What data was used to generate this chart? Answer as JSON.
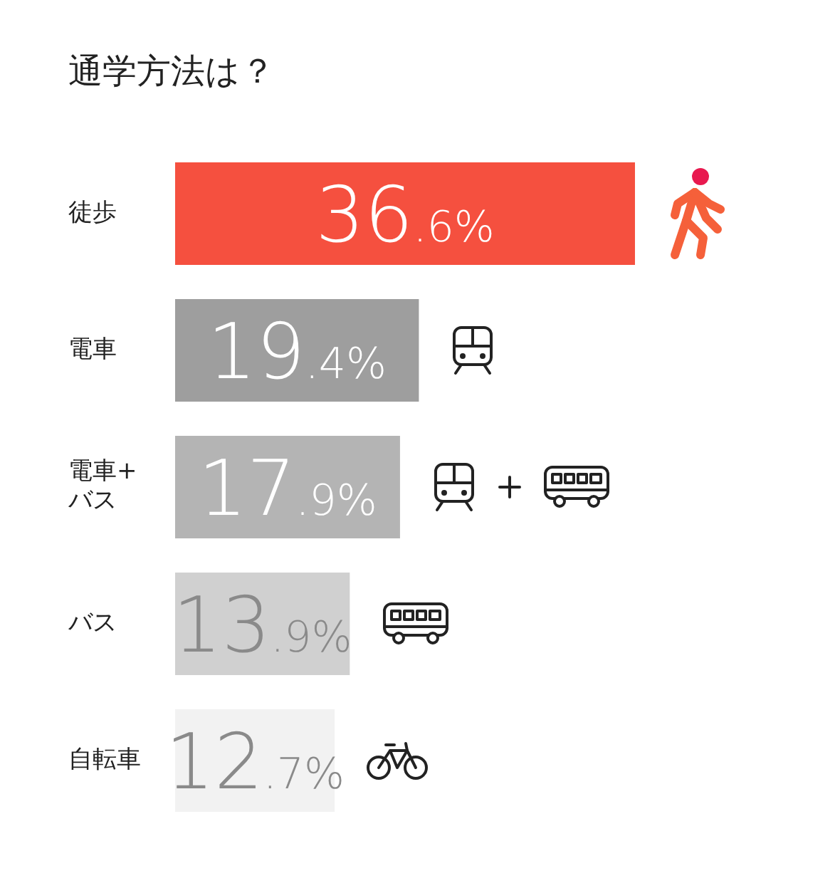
{
  "chart_data": {
    "type": "bar",
    "orientation": "horizontal",
    "title": "通学方法は？",
    "categories": [
      "徒歩",
      "電車",
      "電車+バス",
      "バス",
      "自転車"
    ],
    "values": [
      36.6,
      19.4,
      17.9,
      13.9,
      12.7
    ],
    "colors": [
      "#f5503f",
      "#9e9e9e",
      "#b4b4b4",
      "#d0d0d0",
      "#f2f2f2"
    ],
    "value_labels": [
      "36.6%",
      "19.4%",
      "17.9%",
      "13.9%",
      "12.7%"
    ],
    "legend": false,
    "grid": false,
    "tick_labels": "y"
  }
}
